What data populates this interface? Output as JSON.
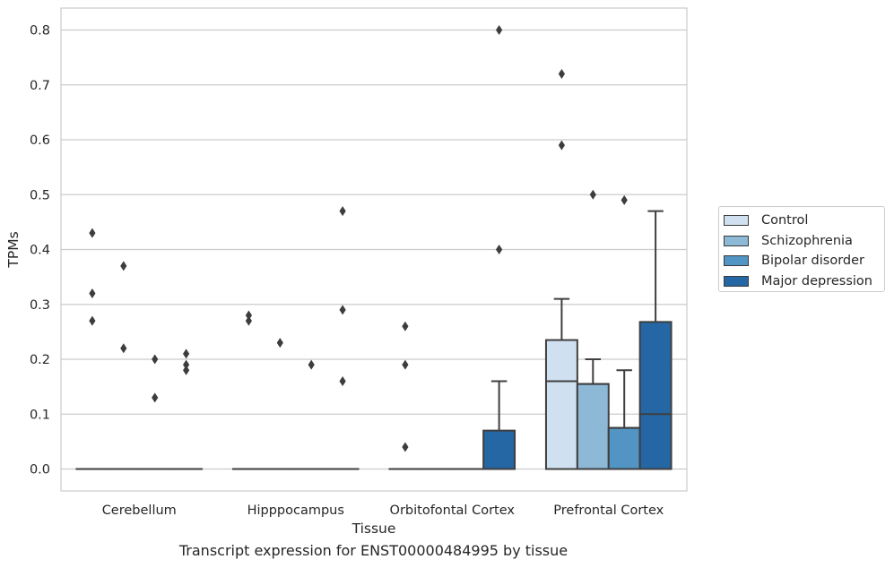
{
  "caption": "Transcript expression for ENST00000484995 by tissue",
  "legend": {
    "items": [
      {
        "label": "Control",
        "color": "#cfe1f0"
      },
      {
        "label": "Schizophrenia",
        "color": "#8db9d7"
      },
      {
        "label": "Bipolar disorder",
        "color": "#5294c3"
      },
      {
        "label": "Major depression",
        "color": "#2566a4"
      }
    ]
  },
  "chart_data": {
    "type": "box",
    "xlabel": "Tissue",
    "ylabel": "TPMs",
    "ylim": [
      -0.04,
      0.84
    ],
    "yticks": [
      0.0,
      0.1,
      0.2,
      0.3,
      0.4,
      0.5,
      0.6,
      0.7,
      0.8
    ],
    "ytick_labels": [
      "0.0",
      "0.1",
      "0.2",
      "0.3",
      "0.4",
      "0.5",
      "0.6",
      "0.7",
      "0.8"
    ],
    "grid": "horizontal",
    "legend_position": "right",
    "categories": [
      "Cerebellum",
      "Hipppocampus",
      "Orbitofontal Cortex",
      "Prefrontal Cortex"
    ],
    "series": [
      {
        "name": "Control",
        "boxes": [
          {
            "q1": 0,
            "median": 0,
            "q3": 0,
            "whislo": 0,
            "whishi": 0,
            "fliers": [
              0.43,
              0.32,
              0.27
            ]
          },
          {
            "q1": 0,
            "median": 0,
            "q3": 0,
            "whislo": 0,
            "whishi": 0,
            "fliers": [
              0.28,
              0.27
            ]
          },
          {
            "q1": 0,
            "median": 0,
            "q3": 0,
            "whislo": 0,
            "whishi": 0,
            "fliers": [
              0.26,
              0.19,
              0.04
            ]
          },
          {
            "q1": 0,
            "median": 0.16,
            "q3": 0.235,
            "whislo": 0,
            "whishi": 0.31,
            "fliers": [
              0.72,
              0.59
            ]
          }
        ]
      },
      {
        "name": "Schizophrenia",
        "boxes": [
          {
            "q1": 0,
            "median": 0,
            "q3": 0,
            "whislo": 0,
            "whishi": 0,
            "fliers": [
              0.37,
              0.22
            ]
          },
          {
            "q1": 0,
            "median": 0,
            "q3": 0,
            "whislo": 0,
            "whishi": 0,
            "fliers": [
              0.23
            ]
          },
          {
            "q1": 0,
            "median": 0,
            "q3": 0,
            "whislo": 0,
            "whishi": 0,
            "fliers": []
          },
          {
            "q1": 0,
            "median": 0.155,
            "q3": 0.155,
            "whislo": 0,
            "whishi": 0.2,
            "fliers": [
              0.5
            ]
          }
        ]
      },
      {
        "name": "Bipolar disorder",
        "boxes": [
          {
            "q1": 0,
            "median": 0,
            "q3": 0,
            "whislo": 0,
            "whishi": 0,
            "fliers": [
              0.2,
              0.13
            ]
          },
          {
            "q1": 0,
            "median": 0,
            "q3": 0,
            "whislo": 0,
            "whishi": 0,
            "fliers": [
              0.19
            ]
          },
          {
            "q1": 0,
            "median": 0,
            "q3": 0,
            "whislo": 0,
            "whishi": 0,
            "fliers": []
          },
          {
            "q1": 0,
            "median": 0.075,
            "q3": 0.075,
            "whislo": 0,
            "whishi": 0.18,
            "fliers": [
              0.49
            ]
          }
        ]
      },
      {
        "name": "Major depression",
        "boxes": [
          {
            "q1": 0,
            "median": 0,
            "q3": 0,
            "whislo": 0,
            "whishi": 0,
            "fliers": [
              0.21,
              0.19,
              0.18
            ]
          },
          {
            "q1": 0,
            "median": 0,
            "q3": 0,
            "whislo": 0,
            "whishi": 0,
            "fliers": [
              0.47,
              0.29,
              0.16
            ]
          },
          {
            "q1": 0,
            "median": 0,
            "q3": 0.07,
            "whislo": 0,
            "whishi": 0.16,
            "fliers": [
              0.8,
              0.4
            ]
          },
          {
            "q1": 0,
            "median": 0.1,
            "q3": 0.268,
            "whislo": 0,
            "whishi": 0.47,
            "fliers": []
          }
        ]
      }
    ]
  }
}
